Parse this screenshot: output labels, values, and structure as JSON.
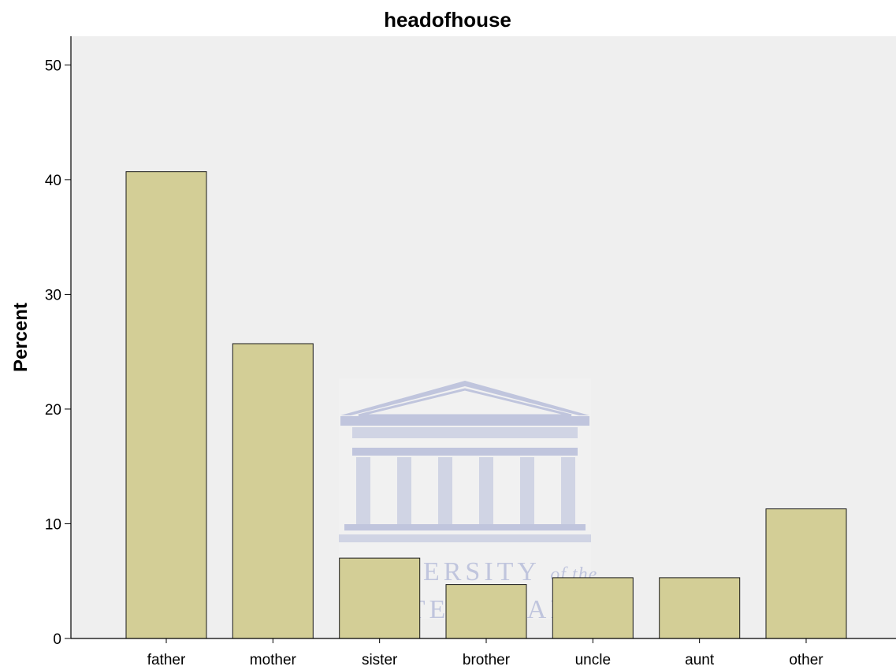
{
  "chart_data": {
    "type": "bar",
    "title": "headofhouse",
    "xlabel": "",
    "ylabel": "Percent",
    "categories": [
      "father",
      "mother",
      "sister",
      "brother",
      "uncle",
      "aunt",
      "other"
    ],
    "values": [
      40.7,
      25.7,
      7.0,
      4.7,
      5.3,
      5.3,
      11.3
    ],
    "ylim": [
      0,
      52.5
    ],
    "yticks": [
      0,
      10,
      20,
      30,
      40,
      50
    ],
    "grid": false,
    "colors": {
      "bar_fill": "#d3ce96",
      "bar_stroke": "#1a1a1a",
      "plot_bg": "#efefef"
    }
  },
  "watermark": {
    "line1": "UNIVERSITY",
    "line1_suffix": "of the",
    "line2": "WESTERN CAPE",
    "color": "#8b96c4"
  }
}
